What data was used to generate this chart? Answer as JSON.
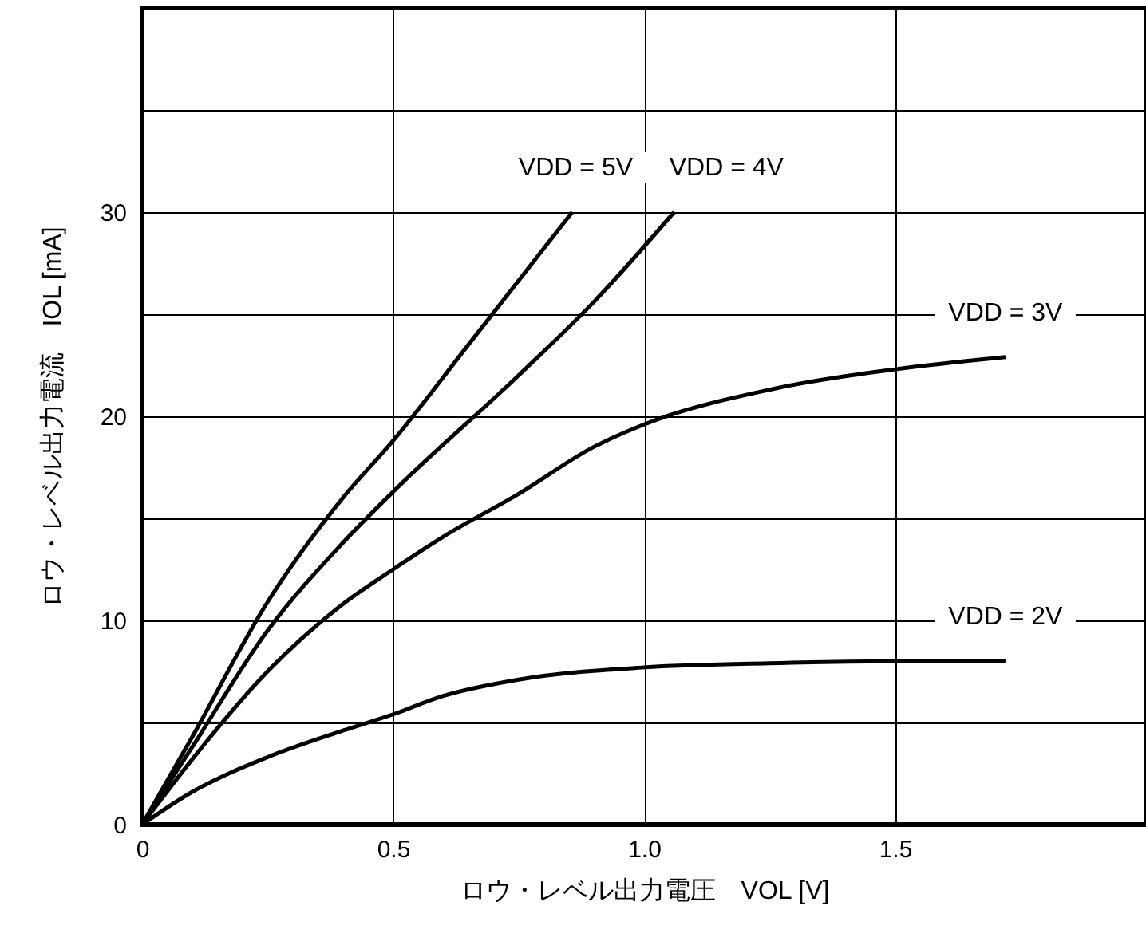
{
  "chart_data": {
    "type": "line",
    "xlabel": "ロウ・レベル出力電圧　VOL [V]",
    "ylabel": "ロウ・レベル出力電流　IOL [mA]",
    "xlim": [
      0,
      2
    ],
    "ylim": [
      0,
      40
    ],
    "xticks": [
      0,
      0.5,
      {
        "value": 1,
        "label": "1.0"
      },
      1.5
    ],
    "yticks": [
      0,
      {
        "value": 5,
        "label": null
      },
      10,
      {
        "value": 15,
        "label": null
      },
      20,
      {
        "value": 25,
        "label": null
      },
      30,
      {
        "value": 35,
        "label": null
      }
    ],
    "grid": true,
    "marker": "none",
    "line_style": "solid",
    "series": [
      {
        "name": "VDD = 5V",
        "color": "#000000",
        "x": [
          0,
          0.1,
          0.25,
          0.4,
          0.5,
          0.65,
          0.857
        ],
        "values": [
          0,
          4.3,
          10.9,
          16,
          18.8,
          23.5,
          30
        ]
      },
      {
        "name": "VDD = 4V",
        "color": "#000000",
        "x": [
          0,
          0.1,
          0.25,
          0.4,
          0.5,
          0.75,
          0.9,
          1.06
        ],
        "values": [
          0,
          3.8,
          9.5,
          13.8,
          16.3,
          22,
          25.6,
          30
        ]
      },
      {
        "name": "VDD = 3V",
        "color": "#000000",
        "x": [
          0,
          0.1,
          0.25,
          0.4,
          0.5,
          0.6,
          0.75,
          0.9,
          1.0,
          1.25,
          1.5,
          1.72
        ],
        "values": [
          0,
          3.2,
          7.5,
          10.8,
          12.5,
          14.1,
          16.2,
          18.5,
          19.6,
          21.3,
          22.3,
          22.9
        ]
      },
      {
        "name": "VDD = 2V",
        "color": "#000000",
        "x": [
          0,
          0.1,
          0.25,
          0.4,
          0.5,
          0.6,
          0.75,
          1.0,
          1.25,
          1.5,
          1.72
        ],
        "values": [
          0,
          1.6,
          3.3,
          4.6,
          5.4,
          6.3,
          7.1,
          7.7,
          7.9,
          8,
          8
        ]
      }
    ]
  }
}
